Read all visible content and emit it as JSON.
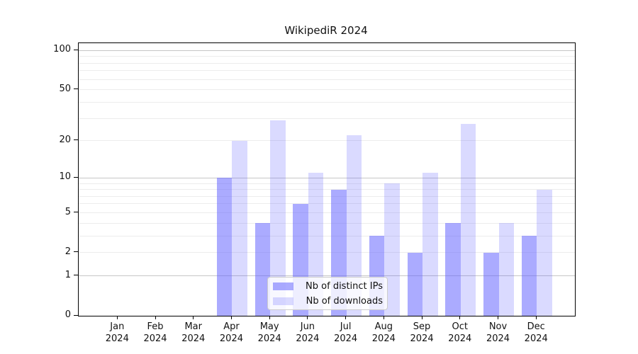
{
  "title": "WikipediR 2024",
  "chart_data": {
    "type": "bar",
    "title": "WikipediR 2024",
    "year_label": "2024",
    "categories": [
      "Jan",
      "Feb",
      "Mar",
      "Apr",
      "May",
      "Jun",
      "Jul",
      "Aug",
      "Sep",
      "Oct",
      "Nov",
      "Dec"
    ],
    "series": [
      {
        "name": "Nb of distinct IPs",
        "color": "rgba(102,102,255,0.55)",
        "values": [
          0,
          0,
          0,
          10,
          4,
          6,
          8,
          3,
          2,
          4,
          2,
          3
        ]
      },
      {
        "name": "Nb of downloads",
        "color": "rgba(102,102,255,0.24)",
        "values": [
          0,
          0,
          0,
          20,
          29,
          11,
          22,
          9,
          11,
          27,
          4,
          8
        ]
      }
    ],
    "xlabel": "",
    "ylabel": "",
    "yscale": "log1p",
    "ylim": [
      0,
      113.6
    ],
    "yticks_labeled": [
      0,
      1,
      2,
      5,
      10,
      20,
      50,
      100
    ],
    "grid_major": [
      1,
      10,
      100
    ],
    "grid_minor": [
      2,
      3,
      4,
      5,
      6,
      7,
      8,
      9,
      20,
      30,
      40,
      50,
      60,
      70,
      80,
      90
    ],
    "grid": "on",
    "legend_position": "bottom-center"
  },
  "colors": {
    "grid_major": "#c6c6c6",
    "grid_minor": "#ececec",
    "axis": "#000000",
    "legend_border": "#cccccc",
    "text": "#111111"
  }
}
